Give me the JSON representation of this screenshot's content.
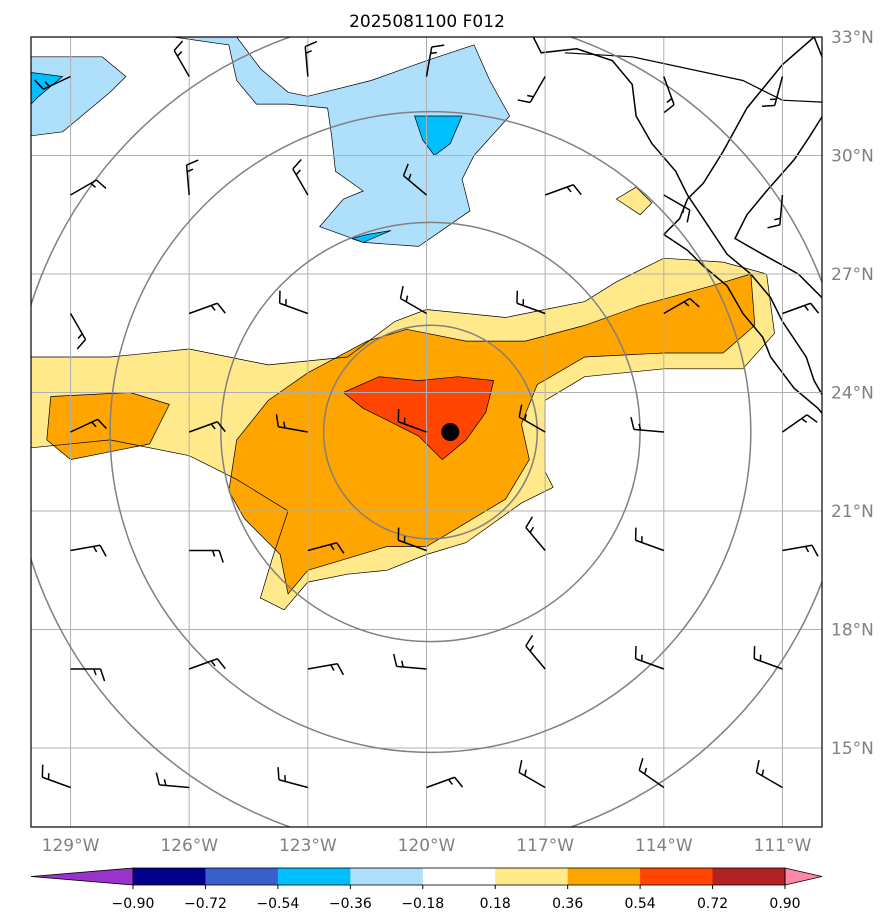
{
  "chart_data": {
    "type": "heatmap",
    "title": "2025081100 F012",
    "xlabel": "",
    "ylabel": "",
    "projection": "lat-lon map",
    "xlim": [
      -130,
      -110
    ],
    "ylim": [
      13,
      33
    ],
    "x_ticks": [
      -129,
      -126,
      -123,
      -120,
      -117,
      -114,
      -111
    ],
    "x_tick_labels": [
      "129°W",
      "126°W",
      "123°W",
      "120°W",
      "117°W",
      "114°W",
      "111°W"
    ],
    "y_ticks": [
      33,
      30,
      27,
      24,
      21,
      18,
      15
    ],
    "y_tick_labels": [
      "33°N",
      "30°N",
      "27°N",
      "24°N",
      "21°N",
      "18°N",
      "15°N"
    ],
    "grid": true,
    "colorbar": {
      "position": "bottom",
      "extend": "both",
      "levels": [
        -0.9,
        -0.72,
        -0.54,
        -0.36,
        -0.18,
        0.18,
        0.36,
        0.54,
        0.72,
        0.9
      ],
      "tick_labels": [
        "−0.90",
        "−0.72",
        "−0.54",
        "−0.36",
        "−0.18",
        "0.18",
        "0.36",
        "0.54",
        "0.72",
        "0.90"
      ],
      "under_color": "#9933cc",
      "over_color": "#ff88aa",
      "colors": [
        "#9933cc",
        "#00008b",
        "#3a5fcd",
        "#00bfff",
        "#afe0fb",
        "#ffffff",
        "#ffe98b",
        "#ffa500",
        "#ff4500",
        "#b22222",
        "#ff88aa"
      ]
    },
    "storm_center": {
      "lon": -119.4,
      "lat": 23.0,
      "color": "#000000"
    },
    "range_rings": {
      "center_lon": -119.9,
      "center_lat": 23.0,
      "radii_deg": [
        2.7,
        5.3,
        8.1,
        10.6
      ],
      "color": "#808080"
    },
    "wind_barbs": {
      "lons": [
        -129,
        -126,
        -123,
        -120,
        -117,
        -114,
        -111
      ],
      "lats": [
        32,
        29,
        26,
        23,
        20,
        17,
        14
      ],
      "dirs_deg": [
        [
          245,
          330,
          355,
          10,
          210,
          160,
          195
        ],
        [
          60,
          355,
          330,
          310,
          70,
          120,
          185
        ],
        [
          150,
          70,
          290,
          300,
          290,
          60,
          70
        ],
        [
          65,
          70,
          280,
          290,
          300,
          275,
          55
        ],
        [
          80,
          90,
          75,
          290,
          320,
          290,
          80
        ],
        [
          90,
          70,
          80,
          275,
          320,
          290,
          290
        ],
        [
          290,
          275,
          285,
          70,
          300,
          305,
          300
        ]
      ],
      "color": "#000000"
    },
    "contour_fields": [
      {
        "level": 0.18,
        "sign": "positive",
        "color": "#ffe98b",
        "polygon": [
          [
            -130,
            24.9
          ],
          [
            -128,
            24.9
          ],
          [
            -126,
            25.1
          ],
          [
            -124,
            24.7
          ],
          [
            -122,
            24.9
          ],
          [
            -120.8,
            25.8
          ],
          [
            -120,
            26.1
          ],
          [
            -118,
            25.9
          ],
          [
            -117,
            26.1
          ],
          [
            -116,
            26.3
          ],
          [
            -115.2,
            26.8
          ],
          [
            -114,
            27.4
          ],
          [
            -112.5,
            27.3
          ],
          [
            -111.4,
            27.0
          ],
          [
            -111.2,
            25.5
          ],
          [
            -112,
            24.6
          ],
          [
            -114,
            24.6
          ],
          [
            -116,
            24.4
          ],
          [
            -117,
            23.8
          ],
          [
            -117,
            22.0
          ],
          [
            -116.8,
            21.6
          ],
          [
            -117.6,
            21.2
          ],
          [
            -119,
            20.2
          ],
          [
            -120,
            19.9
          ],
          [
            -121,
            19.5
          ],
          [
            -122,
            19.4
          ],
          [
            -123,
            19.2
          ],
          [
            -123.6,
            18.5
          ],
          [
            -124.2,
            18.8
          ],
          [
            -123.9,
            19.8
          ],
          [
            -123.5,
            21.0
          ],
          [
            -124.8,
            21.8
          ],
          [
            -126,
            22.4
          ],
          [
            -128,
            22.8
          ],
          [
            -130,
            22.6
          ]
        ]
      },
      {
        "level": 0.36,
        "sign": "positive",
        "color": "#ffa500",
        "polygon": [
          [
            -129.5,
            23.9
          ],
          [
            -127.5,
            24.0
          ],
          [
            -126.5,
            23.7
          ],
          [
            -127,
            22.7
          ],
          [
            -129,
            22.3
          ],
          [
            -129.6,
            22.8
          ]
        ]
      },
      {
        "level": 0.36,
        "sign": "positive",
        "color": "#ffa500",
        "polygon": [
          [
            -124,
            23.8
          ],
          [
            -123,
            24.5
          ],
          [
            -121.5,
            25.3
          ],
          [
            -120.5,
            25.6
          ],
          [
            -119,
            25.3
          ],
          [
            -117.5,
            25.3
          ],
          [
            -116,
            25.7
          ],
          [
            -114.6,
            26.2
          ],
          [
            -112.8,
            26.7
          ],
          [
            -111.8,
            27.0
          ],
          [
            -111.7,
            25.7
          ],
          [
            -112.5,
            25.0
          ],
          [
            -114,
            25.0
          ],
          [
            -116,
            24.9
          ],
          [
            -117.2,
            24.2
          ],
          [
            -117.6,
            23.2
          ],
          [
            -117.4,
            22.3
          ],
          [
            -118.0,
            21.3
          ],
          [
            -119,
            20.7
          ],
          [
            -120,
            20.1
          ],
          [
            -121,
            20.1
          ],
          [
            -122,
            19.8
          ],
          [
            -123,
            19.5
          ],
          [
            -123.5,
            18.9
          ],
          [
            -123.7,
            19.9
          ],
          [
            -124.6,
            20.8
          ],
          [
            -125,
            21.5
          ],
          [
            -124.8,
            22.8
          ]
        ]
      },
      {
        "level": 0.54,
        "sign": "positive",
        "color": "#ff4500",
        "polygon": [
          [
            -122.1,
            24.0
          ],
          [
            -121.2,
            24.4
          ],
          [
            -120.2,
            24.3
          ],
          [
            -119.2,
            24.4
          ],
          [
            -118.3,
            24.3
          ],
          [
            -118.5,
            23.5
          ],
          [
            -119,
            22.8
          ],
          [
            -119.6,
            22.3
          ],
          [
            -120.2,
            22.9
          ],
          [
            -121,
            23.3
          ],
          [
            -121.6,
            23.6
          ]
        ]
      },
      {
        "level": 0.18,
        "sign": "positive",
        "color": "#ffe98b",
        "polygon": [
          [
            -115.2,
            28.9
          ],
          [
            -114.6,
            28.5
          ],
          [
            -114.3,
            28.8
          ],
          [
            -114.7,
            29.2
          ]
        ]
      },
      {
        "level": -0.18,
        "sign": "negative",
        "color": "#afe0fb",
        "polygon": [
          [
            -126.4,
            33
          ],
          [
            -124.8,
            33
          ],
          [
            -124.2,
            32.2
          ],
          [
            -123.5,
            31.6
          ],
          [
            -123,
            31.5
          ],
          [
            -121.4,
            31.9
          ],
          [
            -120,
            32.4
          ],
          [
            -118.8,
            32.8
          ],
          [
            -118.4,
            31.9
          ],
          [
            -117.9,
            31.0
          ],
          [
            -118.8,
            30.0
          ],
          [
            -119.1,
            29.4
          ],
          [
            -118.9,
            28.6
          ],
          [
            -120.2,
            27.7
          ],
          [
            -121.6,
            27.8
          ],
          [
            -122.7,
            28.2
          ],
          [
            -122.1,
            28.9
          ],
          [
            -121.6,
            29.1
          ],
          [
            -122.3,
            29.6
          ],
          [
            -122.4,
            30.5
          ],
          [
            -122.5,
            31.2
          ],
          [
            -123.5,
            31.3
          ],
          [
            -124.3,
            31.3
          ],
          [
            -124.8,
            31.9
          ],
          [
            -125,
            32.8
          ]
        ]
      },
      {
        "level": -0.18,
        "sign": "negative",
        "color": "#afe0fb",
        "polygon": [
          [
            -130,
            32.5
          ],
          [
            -128.2,
            32.5
          ],
          [
            -127.6,
            32.0
          ],
          [
            -128,
            31.6
          ],
          [
            -129.2,
            30.6
          ],
          [
            -130,
            30.5
          ]
        ]
      },
      {
        "level": -0.36,
        "sign": "negative",
        "color": "#00bfff",
        "polygon": [
          [
            -130,
            32.1
          ],
          [
            -129.2,
            32.0
          ],
          [
            -129.8,
            31.5
          ],
          [
            -130,
            31.3
          ]
        ]
      },
      {
        "level": -0.36,
        "sign": "negative",
        "color": "#00bfff",
        "polygon": [
          [
            -120.3,
            31.0
          ],
          [
            -119.1,
            31.0
          ],
          [
            -119.4,
            30.3
          ],
          [
            -119.8,
            30.0
          ],
          [
            -120.1,
            30.4
          ]
        ]
      },
      {
        "level": -0.36,
        "sign": "negative",
        "color": "#00bfff",
        "polygon": [
          [
            -121.5,
            28.0
          ],
          [
            -120.9,
            28.1
          ],
          [
            -121.6,
            27.8
          ],
          [
            -121.9,
            27.9
          ]
        ]
      }
    ],
    "coastline": [
      [
        -110.2,
        33
      ],
      [
        -111,
        32.3
      ],
      [
        -111.9,
        31.2
      ],
      [
        -112.5,
        30.1
      ],
      [
        -113.0,
        29.3
      ],
      [
        -113.4,
        28.9
      ],
      [
        -113.6,
        28.4
      ],
      [
        -114,
        28.0
      ],
      [
        -113.4,
        27.6
      ],
      [
        -113.0,
        27.2
      ],
      [
        -112.4,
        26.7
      ],
      [
        -112.0,
        26.0
      ],
      [
        -111.5,
        25.4
      ],
      [
        -111.3,
        24.9
      ],
      [
        -110.7,
        24.1
      ],
      [
        -110.1,
        23.6
      ],
      [
        -109.7,
        23.1
      ],
      [
        -109.8,
        23.6
      ],
      [
        -110.2,
        24.3
      ],
      [
        -110.4,
        24.9
      ],
      [
        -111,
        25.8
      ],
      [
        -111.3,
        26.4
      ],
      [
        -111.8,
        27.0
      ],
      [
        -112.4,
        27.5
      ],
      [
        -113.0,
        28.4
      ],
      [
        -113.4,
        29.0
      ],
      [
        -113.7,
        29.6
      ],
      [
        -114.3,
        30.3
      ],
      [
        -114.7,
        31.0
      ],
      [
        -114.8,
        31.8
      ],
      [
        -115.3,
        32.4
      ],
      [
        -116.2,
        32.7
      ],
      [
        -117.1,
        32.6
      ],
      [
        -117.3,
        33
      ]
    ],
    "mainland_coast": [
      [
        -110.2,
        33
      ],
      [
        -109.8,
        32.0
      ],
      [
        -109.8,
        31.3
      ],
      [
        -110.3,
        30.5
      ],
      [
        -110.7,
        29.9
      ],
      [
        -111.4,
        29.1
      ],
      [
        -111.9,
        28.5
      ],
      [
        -112.2,
        27.9
      ],
      [
        -111.5,
        27.5
      ],
      [
        -110.6,
        27.0
      ],
      [
        -110.0,
        26.4
      ],
      [
        -109.4,
        25.9
      ],
      [
        -109.1,
        25.3
      ],
      [
        -108.6,
        24.9
      ],
      [
        -108.0,
        24.4
      ],
      [
        -107.3,
        23.8
      ]
    ],
    "border_line": [
      [
        -116.5,
        32.6
      ],
      [
        -114.8,
        32.5
      ],
      [
        -112,
        31.9
      ],
      [
        -111,
        31.4
      ],
      [
        -109,
        31.3
      ]
    ]
  }
}
